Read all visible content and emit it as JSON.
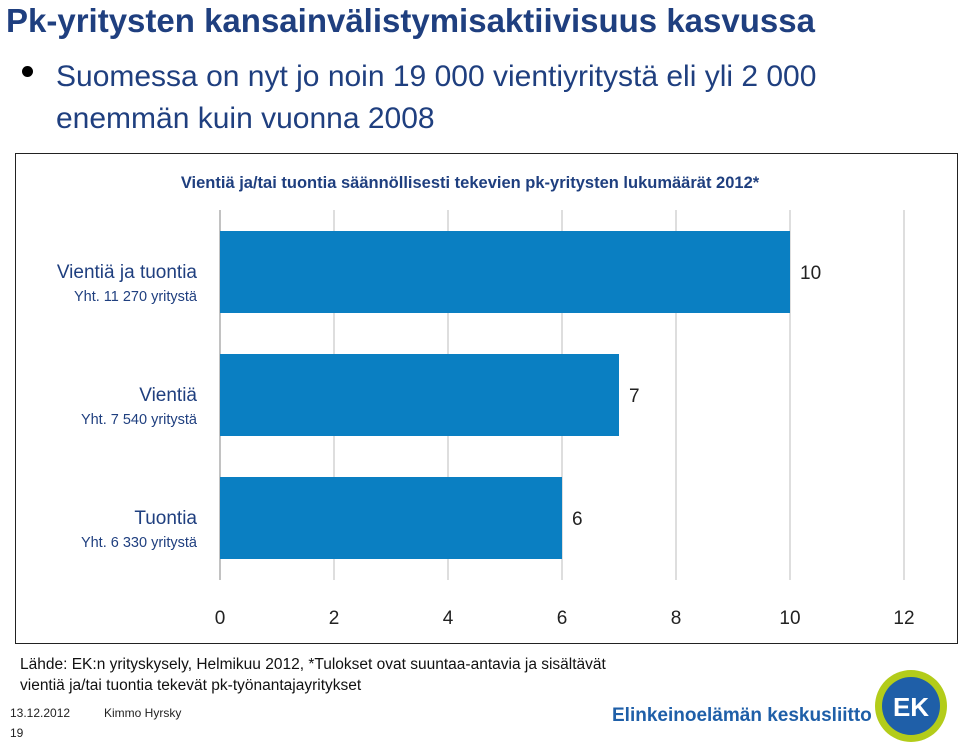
{
  "slide": {
    "title": "Pk-yritysten kansainvälistymisaktiivisuus kasvussa",
    "bullet": "Suomessa on nyt jo noin 19 000 vientiyritystä eli yli 2 000 enemmän kuin vuonna 2008",
    "source_line1": "Lähde: EK:n yrityskysely, Helmikuu 2012, *Tulokset ovat suuntaa-antavia ja sisältävät",
    "source_line2": "vientiä ja/tai tuontia tekevät pk-työnantajayritykset",
    "date": "13.12.2012",
    "author": "Kimmo Hyrsky",
    "page": "19",
    "org_name": "Elinkeinoelämän keskusliitto",
    "logo_text": "EK"
  },
  "colors": {
    "bar": "#0a7fc2",
    "title": "#1f3f7f",
    "logo_blue": "#1f5fa8",
    "logo_green": "#b3cc1a"
  },
  "chart_data": {
    "type": "bar",
    "orientation": "horizontal",
    "title": "Vientiä ja/tai tuontia säännöllisesti tekevien pk-yritysten lukumäärät 2012*",
    "categories": [
      "Vientiä ja tuontia",
      "Vientiä",
      "Tuontia"
    ],
    "sublabels": [
      "Yht. 11 270 yritystä",
      "Yht. 7 540 yritystä",
      "Yht. 6 330 yritystä"
    ],
    "values": [
      10,
      7,
      6
    ],
    "data_labels": [
      "10",
      "7",
      "6"
    ],
    "xlim": [
      0,
      12
    ],
    "xticks": [
      "0",
      "2",
      "4",
      "6",
      "8",
      "10",
      "12"
    ],
    "grid": true,
    "legend": "none"
  }
}
